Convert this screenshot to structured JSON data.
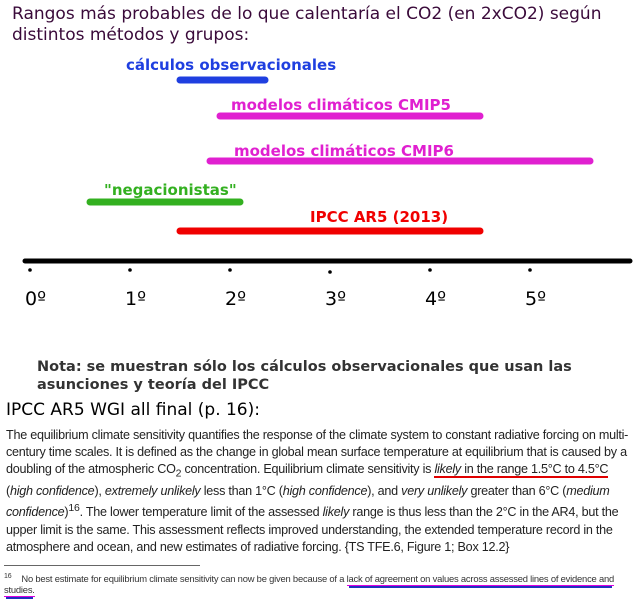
{
  "title": "Rangos más probables de lo que calentaría el CO2 (en 2xCO2) según distintos métodos y grupos:",
  "chart_data": {
    "type": "range-bar",
    "xlim": [
      0,
      6
    ],
    "ticks": [
      0,
      1,
      2,
      3,
      4,
      5
    ],
    "tick_labels": [
      "0º",
      "1º",
      "2º",
      "3º",
      "4º",
      "5º"
    ],
    "series": [
      {
        "name": "cálculos observacionales",
        "range": [
          1.5,
          2.35
        ],
        "color": "#1f3fe0"
      },
      {
        "name": "modelos climáticos  CMIP5",
        "range": [
          1.9,
          4.5
        ],
        "color": "#e020d0"
      },
      {
        "name": "modelos climáticos CMIP6",
        "range": [
          1.8,
          5.6
        ],
        "color": "#e020d0"
      },
      {
        "name": "\"negacionistas\"",
        "range": [
          0.6,
          2.1
        ],
        "color": "#33b020"
      },
      {
        "name": "IPCC AR5 (2013)",
        "range": [
          1.5,
          4.5
        ],
        "color": "#f00000"
      }
    ]
  },
  "note": "Nota: se muestran sólo los cálculos observacionales que usan las asunciones y teoría del IPCC",
  "source": "IPCC AR5 WGI all final (p. 16):",
  "body": {
    "p1": "The equilibrium climate sensitivity quantifies the response of the climate system to constant radiative forcing on multi-century time scales. It is defined as the change in global mean surface temperature at equilibrium that is caused by a doubling of the atmospheric CO",
    "sub": "2",
    "p2": " concentration. Equilibrium climate sensitivity is ",
    "likely": "likely",
    "range": " in the range 1.5°C to 4.5°C",
    "p3": " (",
    "hc1": "high confidence",
    "p4": "), ",
    "eu": "extremely unlikely",
    "p5": " less than 1°C (",
    "hc2": "high confidence",
    "p6": "), and ",
    "vu": "very unlikely",
    "p7": " greater than 6°C (",
    "mc": "medium confidence",
    "p8": ")",
    "fn": "16",
    "p9": ". The lower temperature limit of the assessed ",
    "likely2": "likely",
    "p10": " range is thus less than the 2°C in the AR4, but the upper limit is the same. This assessment reflects improved understanding, the extended temperature record in the atmosphere and ocean, and new estimates of radiative forcing. {TS TFE.6, Figure 1; Box 12.2}"
  },
  "footnote": {
    "num": "16",
    "text": "No best estimate for equilibrium climate sensitivity can now be given because of a ",
    "underlined": "lack of agreement on values across assessed lines of evidence and studies."
  }
}
